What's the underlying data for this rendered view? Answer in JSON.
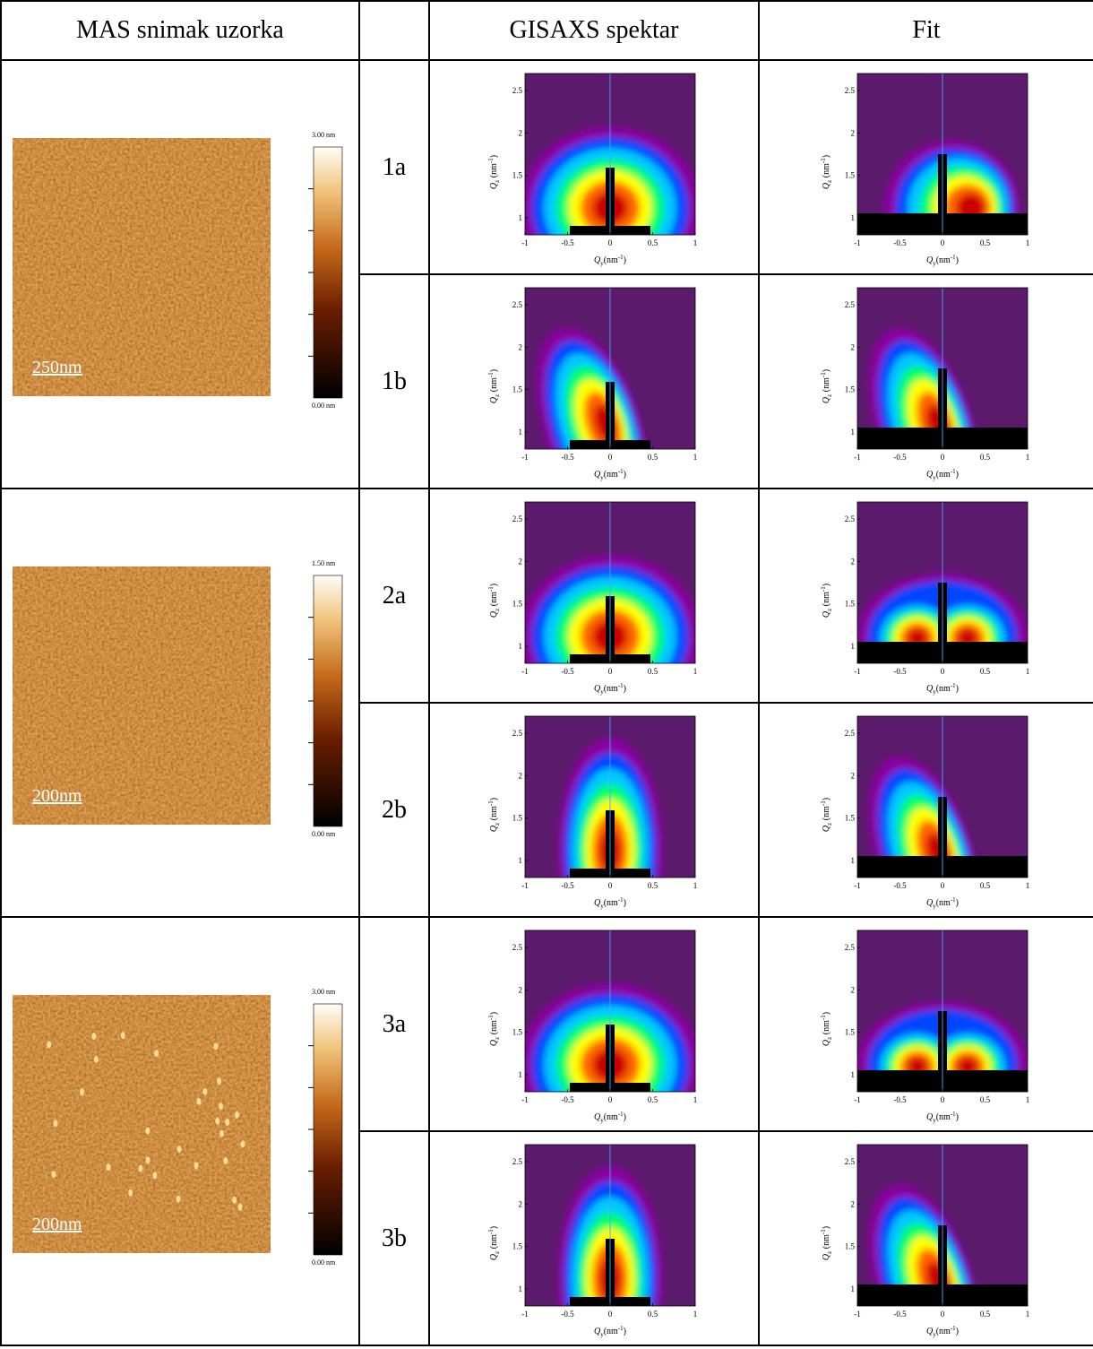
{
  "header": {
    "col1": "MAS snimak uzorka",
    "col2": "",
    "col3": "GISAXS spektar",
    "col4": "Fit"
  },
  "samples": [
    {
      "afm_scale": "250nm",
      "cbar_max": "3.00 nm",
      "cbar_min": "0.00 nm",
      "rows": [
        {
          "label": "1a",
          "spec_shape": "wide",
          "fit_shape": "right-lobe"
        },
        {
          "label": "1b",
          "spec_shape": "tilt-left",
          "fit_shape": "tilt-left"
        }
      ]
    },
    {
      "afm_scale": "200nm",
      "cbar_max": "1.50 nm",
      "cbar_min": "0.00 nm",
      "rows": [
        {
          "label": "2a",
          "spec_shape": "wide",
          "fit_shape": "two-lobe"
        },
        {
          "label": "2b",
          "spec_shape": "narrow",
          "fit_shape": "tilt-left"
        }
      ]
    },
    {
      "afm_scale": "200nm",
      "cbar_max": "3.00 nm",
      "cbar_min": "0.00 nm",
      "rows": [
        {
          "label": "3a",
          "spec_shape": "wide",
          "fit_shape": "two-lobe"
        },
        {
          "label": "3b",
          "spec_shape": "narrow",
          "fit_shape": "tilt-left"
        }
      ]
    }
  ],
  "plot_axes": {
    "xlabel": "Q_y(nm^-1)",
    "ylabel": "Q_z (nm^-1)",
    "x_ticks": [
      "-1",
      "-0.5",
      "0",
      "0.5",
      "1"
    ],
    "y_ticks": [
      "1",
      "1.5",
      "2",
      "2.5"
    ]
  },
  "colors": {
    "background_purple": "#5b1a6b",
    "cmap": [
      "#8a00a0",
      "#0044ff",
      "#00c8ff",
      "#00ff66",
      "#ffff00",
      "#ff6600",
      "#cc0000"
    ],
    "afm_base": "#a8520e"
  }
}
